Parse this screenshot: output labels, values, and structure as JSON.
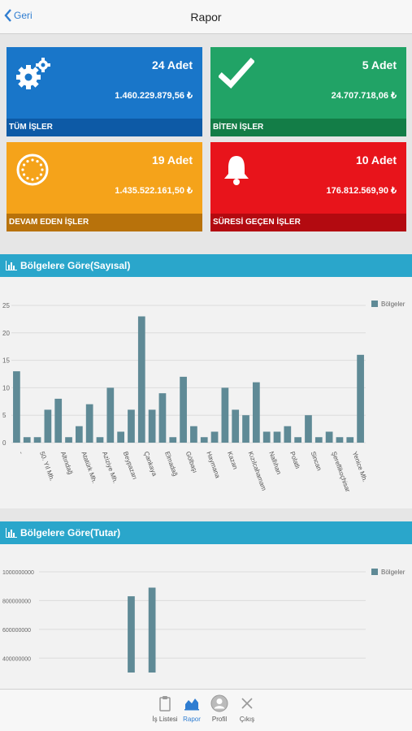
{
  "nav": {
    "back_label": "Geri",
    "title": "Rapor"
  },
  "tiles": [
    {
      "count": "24 Adet",
      "amount": "1.460.229.879,56 ₺",
      "label": "TÜM İŞLER",
      "icon": "gears-icon",
      "color": "#1976c9",
      "footer_color": "#0d5aa6"
    },
    {
      "count": "5 Adet",
      "amount": "24.707.718,06 ₺",
      "label": "BİTEN İŞLER",
      "icon": "checkmark-icon",
      "color": "#21a366",
      "footer_color": "#137d47"
    },
    {
      "count": "19 Adet",
      "amount": "1.435.522.161,50 ₺",
      "label": "DEVAM EDEN İŞLER",
      "icon": "spinner-icon",
      "color": "#f5a31a",
      "footer_color": "#b8720b"
    },
    {
      "count": "10 Adet",
      "amount": "176.812.569,90 ₺",
      "label": "SÜRESİ GEÇEN İŞLER",
      "icon": "bell-icon",
      "color": "#e8141b",
      "footer_color": "#b30a10"
    }
  ],
  "chart1_title": "Bölgelere Göre(Sayısal)",
  "chart2_title": "Bölgelere Göre(Tutar)",
  "chart_data": [
    {
      "type": "bar",
      "title": "Bölgelere Göre(Sayısal)",
      "legend": "Bölgeler",
      "legend_position": "top-right",
      "ylim": [
        0,
        25
      ],
      "yticks": [
        "0",
        "5",
        "10",
        "15",
        "20",
        "25"
      ],
      "grid": true,
      "color": "#5f8a96",
      "tick_labels": [
        "-",
        "50. Yıl Mh.",
        "Altındağ",
        "Atatürk Mh.",
        "Aziziye Mh.",
        "Beypazarı",
        "Çankaya",
        "Elmadağ",
        "Gölbaşı",
        "Haymana",
        "Kazan",
        "Kızılcahamam",
        "Nallıhan",
        "Polatlı",
        "Sincan",
        "Şereflikoçhisar",
        "Yenice Mh."
      ],
      "values": [
        13,
        1,
        1,
        6,
        8,
        1,
        3,
        7,
        1,
        10,
        2,
        6,
        23,
        6,
        9,
        1,
        12,
        3,
        1,
        2,
        10,
        6,
        5,
        11,
        2,
        2,
        3,
        1,
        5,
        1,
        2,
        1,
        1,
        16
      ]
    },
    {
      "type": "bar",
      "title": "Bölgelere Göre(Tutar)",
      "legend": "Bölgeler",
      "legend_position": "top-right",
      "yticks": [
        "400000000",
        "600000000",
        "800000000",
        "1000000000"
      ],
      "ylim": [
        300000000,
        1000000000
      ],
      "grid": true,
      "color": "#5f8a96",
      "visible_values": [
        {
          "index": 11,
          "value": 830000000
        },
        {
          "index": 13,
          "value": 890000000
        }
      ]
    }
  ],
  "tabbar": [
    {
      "label": "İş Listesi",
      "icon": "clipboard-icon",
      "active": false
    },
    {
      "label": "Rapor",
      "icon": "report-chart-icon",
      "active": true
    },
    {
      "label": "Profil",
      "icon": "profile-icon",
      "active": false
    },
    {
      "label": "Çıkış",
      "icon": "close-icon",
      "active": false
    }
  ]
}
